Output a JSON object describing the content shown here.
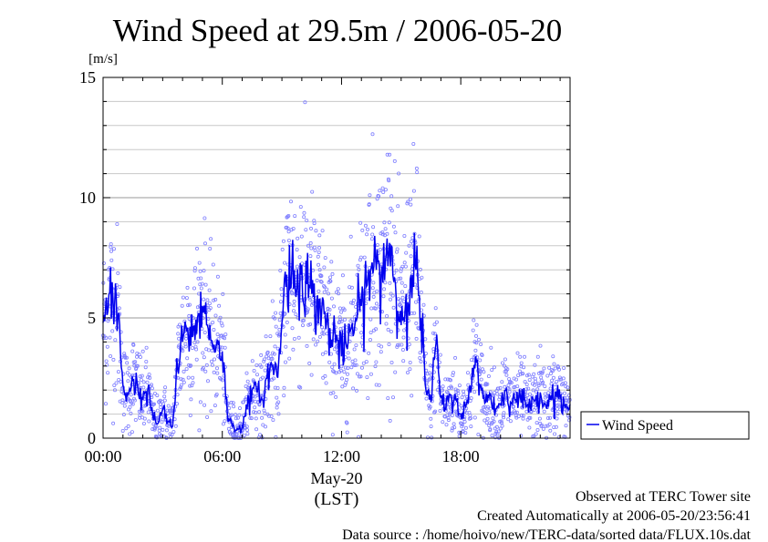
{
  "chart_data": {
    "type": "line",
    "title": "Wind Speed at 29.5m / 2006-05-20",
    "ylabel": "[m/s]",
    "xlabel": "(LST)",
    "x_date_label": "May-20",
    "x_tick_labels": [
      "00:00",
      "06:00",
      "12:00",
      "18:00"
    ],
    "x_tick_hours": [
      0,
      6,
      12,
      18
    ],
    "xlim_hours": [
      0,
      23.5
    ],
    "y_tick_labels": [
      "0",
      "5",
      "10",
      "15"
    ],
    "y_tick_values": [
      0,
      5,
      10,
      15
    ],
    "ylim": [
      0,
      15
    ],
    "grid": "horizontal",
    "legend_position": "right",
    "colors": {
      "line": "#0000ee",
      "points": "#8080ff"
    },
    "series": [
      {
        "name": "Wind Speed",
        "style": "line with scatter of 10s samples",
        "x_hours": [
          0.0,
          0.25,
          0.5,
          0.75,
          1.0,
          1.25,
          1.5,
          1.75,
          2.0,
          2.25,
          2.5,
          2.75,
          3.0,
          3.25,
          3.5,
          3.75,
          4.0,
          4.25,
          4.5,
          4.75,
          5.0,
          5.25,
          5.5,
          5.75,
          6.0,
          6.25,
          6.5,
          6.75,
          7.0,
          7.25,
          7.5,
          7.75,
          8.0,
          8.25,
          8.5,
          8.75,
          9.0,
          9.25,
          9.5,
          9.75,
          10.0,
          10.25,
          10.5,
          10.75,
          11.0,
          11.25,
          11.5,
          11.75,
          12.0,
          12.25,
          12.5,
          12.75,
          13.0,
          13.25,
          13.5,
          13.75,
          14.0,
          14.25,
          14.5,
          14.75,
          15.0,
          15.25,
          15.5,
          15.75,
          16.0,
          16.25,
          16.5,
          16.75,
          17.0,
          17.25,
          17.5,
          17.75,
          18.0,
          18.25,
          18.5,
          18.75,
          19.0,
          19.25,
          19.5,
          19.75,
          20.0,
          20.25,
          20.5,
          20.75,
          21.0,
          21.25,
          21.5,
          21.75,
          22.0,
          22.25,
          22.5,
          22.75,
          23.0,
          23.25,
          23.5
        ],
        "values": [
          4.8,
          5.3,
          5.8,
          5.1,
          2.2,
          1.8,
          2.4,
          2.1,
          1.6,
          2.0,
          0.9,
          0.6,
          1.2,
          0.7,
          0.5,
          2.9,
          4.0,
          4.6,
          4.2,
          5.0,
          5.5,
          4.7,
          3.9,
          4.1,
          3.6,
          1.0,
          0.5,
          0.4,
          0.5,
          1.2,
          2.0,
          1.9,
          1.6,
          2.5,
          3.0,
          2.6,
          4.8,
          6.8,
          7.1,
          6.2,
          7.2,
          6.4,
          6.0,
          5.7,
          5.3,
          4.8,
          4.1,
          4.3,
          3.4,
          3.8,
          4.6,
          4.9,
          5.5,
          6.3,
          7.1,
          7.0,
          6.8,
          7.7,
          8.0,
          5.8,
          4.7,
          6.0,
          6.8,
          7.0,
          5.0,
          2.0,
          1.5,
          3.9,
          1.7,
          1.2,
          1.8,
          1.6,
          1.0,
          1.3,
          1.9,
          3.4,
          2.2,
          1.5,
          1.8,
          1.2,
          1.4,
          2.0,
          1.5,
          1.6,
          1.7,
          1.5,
          1.3,
          1.6,
          1.9,
          1.4,
          1.6,
          1.9,
          1.7,
          1.3,
          1.4
        ]
      }
    ]
  },
  "footer": {
    "line1": "Observed at TERC Tower site",
    "line2": "Created Automatically at 2006-05-20/23:56:41",
    "line3": "Data source : /home/hoivo/new/TERC-data/sorted  data/FLUX.10s.dat"
  }
}
